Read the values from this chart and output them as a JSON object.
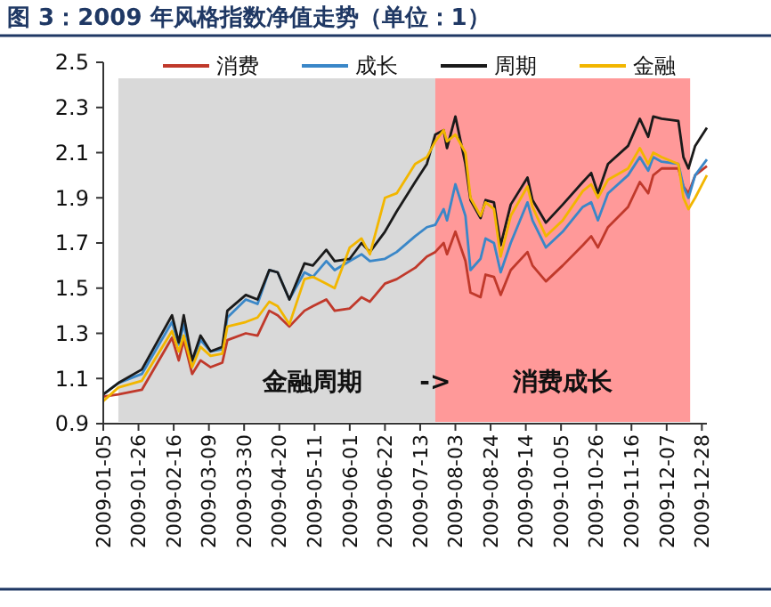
{
  "chart_data": {
    "type": "line",
    "title": "图 3：2009 年风格指数净值走势（单位：1）",
    "x": [
      "2009-01-05",
      "2009-01-14",
      "2009-01-28",
      "2009-02-15",
      "2009-02-19",
      "2009-02-22",
      "2009-02-27",
      "2009-03-04",
      "2009-03-10",
      "2009-03-17",
      "2009-03-20",
      "2009-03-31",
      "2009-04-07",
      "2009-04-14",
      "2009-04-19",
      "2009-04-26",
      "2009-05-05",
      "2009-05-10",
      "2009-05-18",
      "2009-05-23",
      "2009-06-01",
      "2009-06-08",
      "2009-06-13",
      "2009-06-22",
      "2009-06-29",
      "2009-07-10",
      "2009-07-17",
      "2009-07-22",
      "2009-07-27",
      "2009-07-29",
      "2009-08-03",
      "2009-08-09",
      "2009-08-12",
      "2009-08-18",
      "2009-08-21",
      "2009-08-26",
      "2009-08-30",
      "2009-09-05",
      "2009-09-15",
      "2009-09-18",
      "2009-09-26",
      "2009-10-06",
      "2009-10-18",
      "2009-10-23",
      "2009-10-27",
      "2009-11-02",
      "2009-11-14",
      "2009-11-21",
      "2009-11-26",
      "2009-11-29",
      "2009-12-04",
      "2009-12-14",
      "2009-12-17",
      "2009-12-20",
      "2009-12-24",
      "2009-12-31"
    ],
    "series": [
      {
        "name": "消费",
        "color": "#c0392b",
        "values": [
          1.02,
          1.03,
          1.05,
          1.28,
          1.18,
          1.27,
          1.12,
          1.18,
          1.15,
          1.17,
          1.27,
          1.3,
          1.29,
          1.4,
          1.38,
          1.33,
          1.4,
          1.42,
          1.45,
          1.4,
          1.41,
          1.46,
          1.44,
          1.52,
          1.54,
          1.59,
          1.64,
          1.66,
          1.7,
          1.65,
          1.75,
          1.62,
          1.48,
          1.46,
          1.56,
          1.55,
          1.47,
          1.58,
          1.66,
          1.6,
          1.53,
          1.6,
          1.69,
          1.73,
          1.68,
          1.77,
          1.86,
          1.97,
          1.92,
          2.0,
          2.03,
          2.03,
          1.95,
          1.92,
          2.0,
          2.04
        ]
      },
      {
        "name": "成长",
        "color": "#3a87c8",
        "values": [
          1.03,
          1.08,
          1.12,
          1.35,
          1.25,
          1.34,
          1.17,
          1.27,
          1.22,
          1.23,
          1.37,
          1.45,
          1.43,
          1.58,
          1.57,
          1.45,
          1.57,
          1.55,
          1.62,
          1.58,
          1.62,
          1.65,
          1.62,
          1.63,
          1.66,
          1.73,
          1.77,
          1.78,
          1.85,
          1.8,
          1.96,
          1.82,
          1.58,
          1.63,
          1.72,
          1.7,
          1.57,
          1.7,
          1.88,
          1.8,
          1.68,
          1.75,
          1.86,
          1.88,
          1.8,
          1.92,
          2.0,
          2.08,
          2.02,
          2.08,
          2.06,
          2.05,
          1.95,
          1.9,
          2.0,
          2.07
        ]
      },
      {
        "name": "周期",
        "color": "#1a1a1a",
        "values": [
          1.03,
          1.08,
          1.14,
          1.38,
          1.26,
          1.38,
          1.18,
          1.29,
          1.22,
          1.24,
          1.4,
          1.47,
          1.45,
          1.58,
          1.57,
          1.45,
          1.61,
          1.6,
          1.67,
          1.62,
          1.63,
          1.7,
          1.66,
          1.75,
          1.84,
          1.97,
          2.05,
          2.18,
          2.2,
          2.12,
          2.26,
          2.05,
          1.89,
          1.81,
          1.89,
          1.88,
          1.69,
          1.87,
          1.99,
          1.89,
          1.79,
          1.87,
          1.97,
          2.01,
          1.92,
          2.05,
          2.13,
          2.25,
          2.17,
          2.26,
          2.25,
          2.24,
          2.08,
          2.03,
          2.13,
          2.21
        ]
      },
      {
        "name": "金融",
        "color": "#f2b600",
        "values": [
          1.0,
          1.06,
          1.09,
          1.31,
          1.22,
          1.29,
          1.15,
          1.24,
          1.2,
          1.21,
          1.33,
          1.35,
          1.37,
          1.44,
          1.42,
          1.34,
          1.54,
          1.55,
          1.52,
          1.5,
          1.68,
          1.72,
          1.65,
          1.9,
          1.92,
          2.05,
          2.08,
          2.15,
          2.2,
          2.15,
          2.18,
          2.1,
          1.9,
          1.82,
          1.88,
          1.85,
          1.64,
          1.82,
          1.95,
          1.86,
          1.73,
          1.8,
          1.93,
          1.96,
          1.9,
          1.98,
          2.03,
          2.12,
          2.05,
          2.1,
          2.08,
          2.05,
          1.9,
          1.85,
          1.9,
          2.0
        ]
      }
    ],
    "xlim": [
      "2009-01-05",
      "2009-12-31"
    ],
    "xticks": [
      "2009-01-05",
      "2009-01-26",
      "2009-02-16",
      "2009-03-09",
      "2009-03-30",
      "2009-04-20",
      "2009-05-11",
      "2009-06-01",
      "2009-06-22",
      "2009-07-13",
      "2009-08-03",
      "2009-08-24",
      "2009-09-14",
      "2009-10-05",
      "2009-10-26",
      "2009-11-16",
      "2009-12-07",
      "2009-12-28"
    ],
    "ylim": [
      0.9,
      2.5
    ],
    "yticks": [
      0.9,
      1.1,
      1.3,
      1.5,
      1.7,
      1.9,
      2.1,
      2.3,
      2.5
    ],
    "bands": [
      {
        "axis": "x",
        "from": "2009-01-14",
        "to": "2009-07-22",
        "label": "金融周期",
        "color": "#d9d9d9"
      },
      {
        "axis": "x",
        "from": "2009-07-22",
        "to": "2009-12-21",
        "label": "消费成长",
        "color": "#ff9999"
      }
    ],
    "annotations": [
      "->"
    ],
    "legend": "top",
    "grid": false,
    "line_style": "solid"
  }
}
